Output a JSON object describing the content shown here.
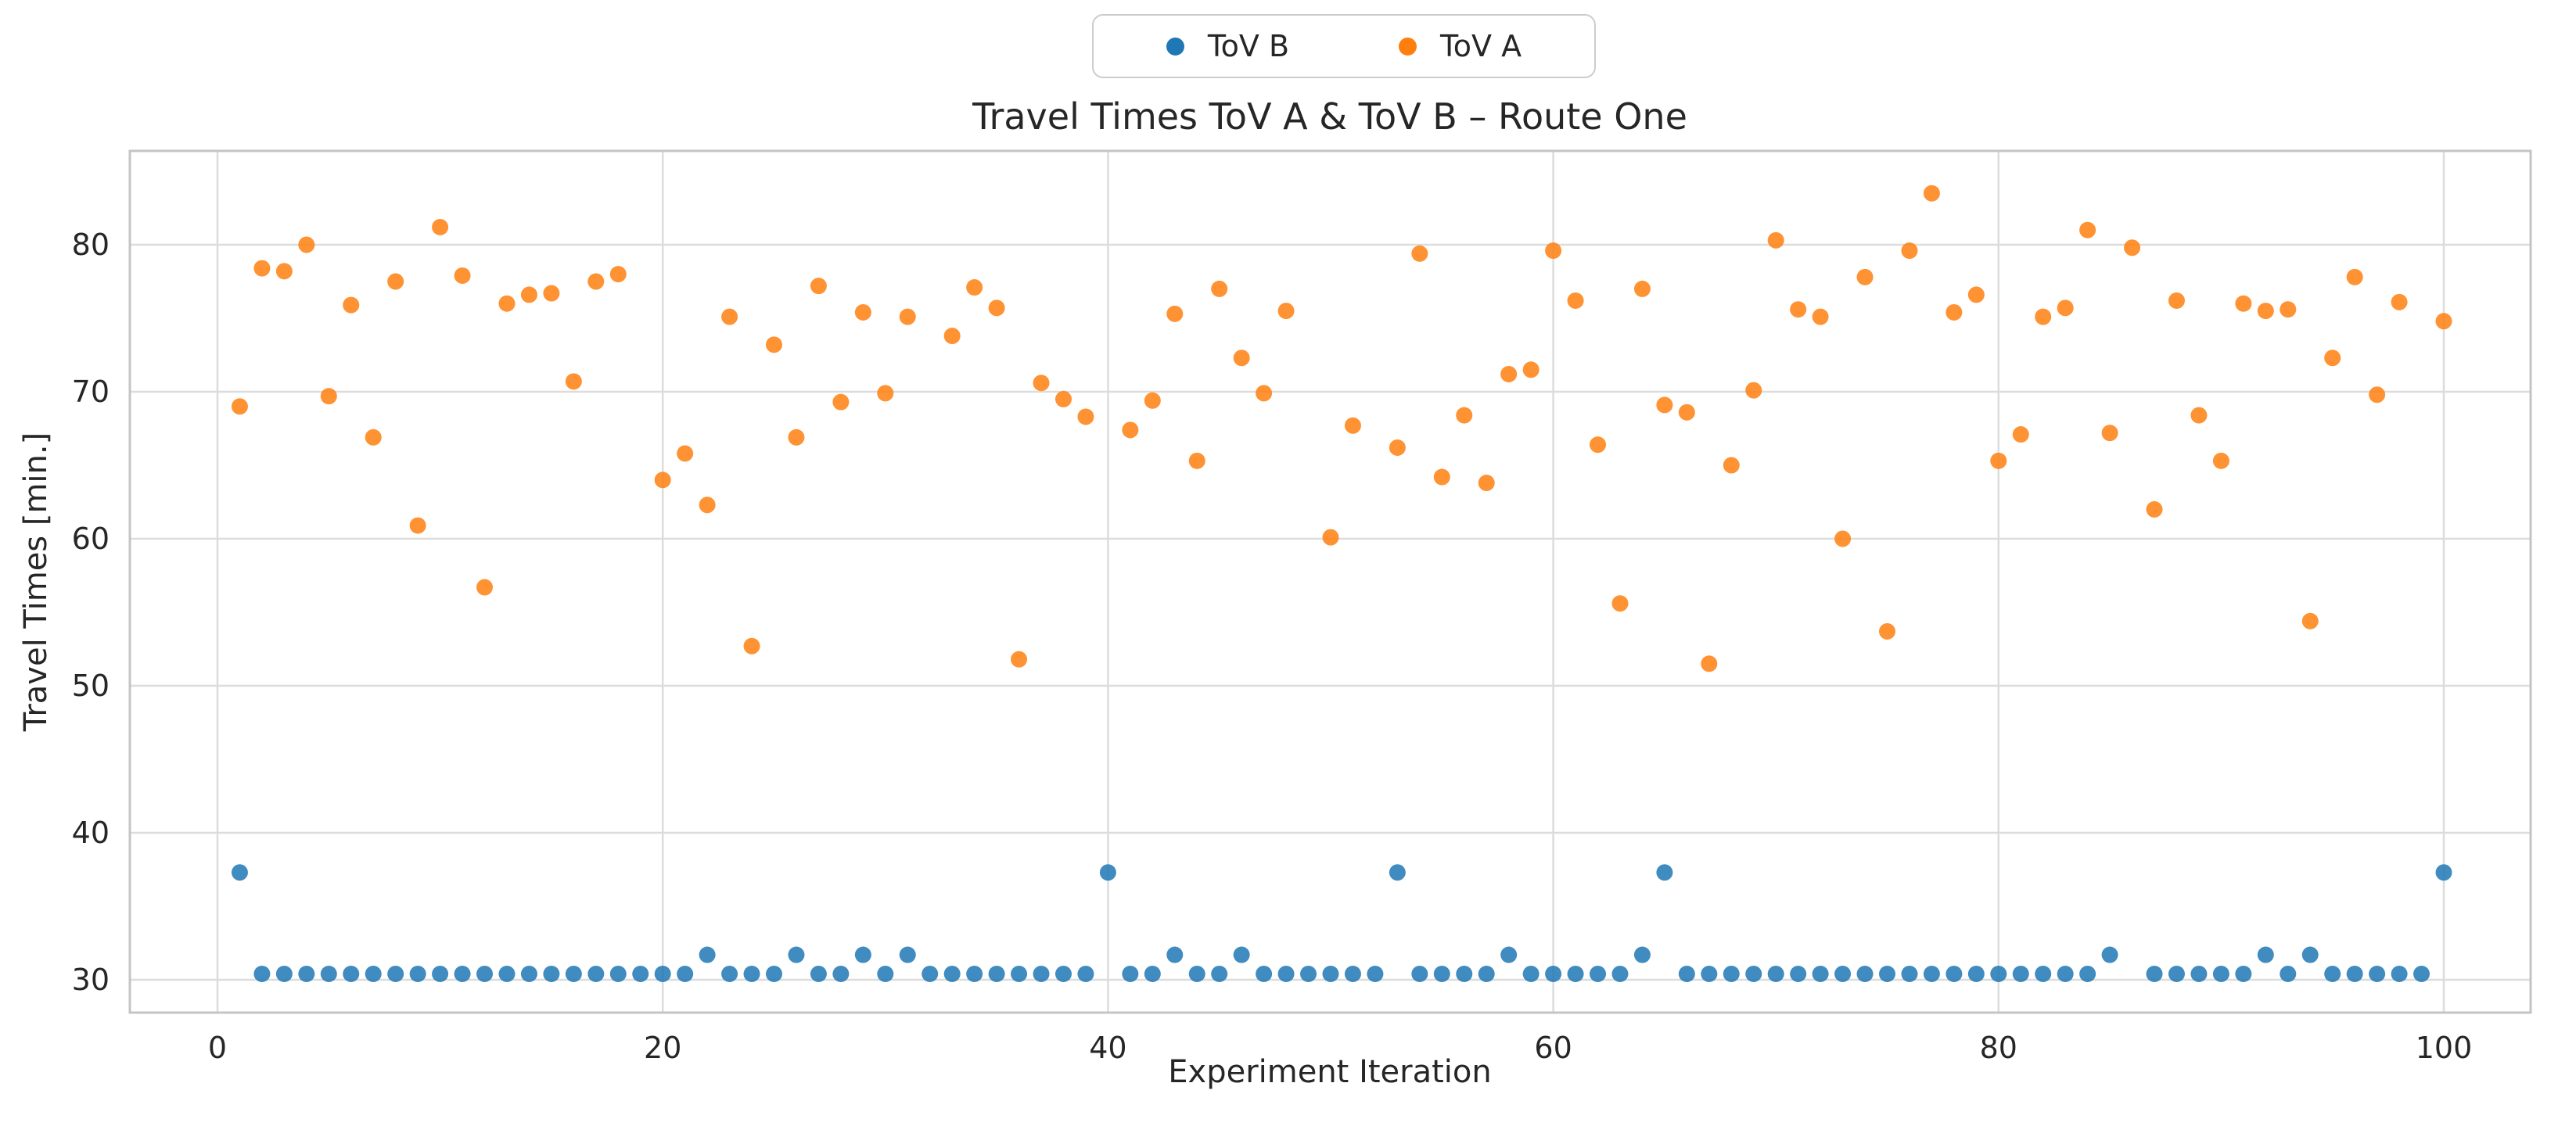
{
  "title": "Travel Times ToV A & ToV B – Route One",
  "axes": {
    "xlabel": "Experiment Iteration",
    "ylabel": "Travel Times [min.]"
  },
  "legend": {
    "entries": [
      {
        "label": "ToV B",
        "color": "#1f77b4"
      },
      {
        "label": "ToV A",
        "color": "#ff7f0e"
      }
    ]
  },
  "colors": {
    "blue": "#1f77b4",
    "orange": "#ff7f0e",
    "grid": "#dcdcdc",
    "spine": "#c4c4c4",
    "text": "#262626"
  },
  "chart_data": {
    "type": "scatter",
    "title": "Travel Times ToV A & ToV B – Route One",
    "xlabel": "Experiment Iteration",
    "ylabel": "Travel Times [min.]",
    "xlim": [
      -3.9,
      103.9
    ],
    "ylim": [
      27.8,
      86.4
    ],
    "xticks": [
      0,
      20,
      40,
      60,
      80,
      100
    ],
    "yticks": [
      30,
      40,
      50,
      60,
      70,
      80
    ],
    "grid": true,
    "legend_position": "upper center outside",
    "marker_opacity": 0.85,
    "series": [
      {
        "name": "ToV B",
        "color": "#1f77b4",
        "points": [
          [
            1,
            37.3
          ],
          [
            2,
            30.4
          ],
          [
            3,
            30.4
          ],
          [
            4,
            30.4
          ],
          [
            5,
            30.4
          ],
          [
            6,
            30.4
          ],
          [
            7,
            30.4
          ],
          [
            8,
            30.4
          ],
          [
            9,
            30.4
          ],
          [
            10,
            30.4
          ],
          [
            11,
            30.4
          ],
          [
            12,
            30.4
          ],
          [
            13,
            30.4
          ],
          [
            14,
            30.4
          ],
          [
            15,
            30.4
          ],
          [
            16,
            30.4
          ],
          [
            17,
            30.4
          ],
          [
            18,
            30.4
          ],
          [
            19,
            30.4
          ],
          [
            20,
            30.4
          ],
          [
            21,
            30.4
          ],
          [
            22,
            31.7
          ],
          [
            23,
            30.4
          ],
          [
            24,
            30.4
          ],
          [
            25,
            30.4
          ],
          [
            26,
            31.7
          ],
          [
            27,
            30.4
          ],
          [
            28,
            30.4
          ],
          [
            29,
            31.7
          ],
          [
            30,
            30.4
          ],
          [
            31,
            31.7
          ],
          [
            32,
            30.4
          ],
          [
            33,
            30.4
          ],
          [
            34,
            30.4
          ],
          [
            35,
            30.4
          ],
          [
            36,
            30.4
          ],
          [
            37,
            30.4
          ],
          [
            38,
            30.4
          ],
          [
            39,
            30.4
          ],
          [
            40,
            37.3
          ],
          [
            41,
            30.4
          ],
          [
            42,
            30.4
          ],
          [
            43,
            31.7
          ],
          [
            44,
            30.4
          ],
          [
            45,
            30.4
          ],
          [
            46,
            31.7
          ],
          [
            47,
            30.4
          ],
          [
            48,
            30.4
          ],
          [
            49,
            30.4
          ],
          [
            50,
            30.4
          ],
          [
            51,
            30.4
          ],
          [
            52,
            30.4
          ],
          [
            53,
            37.3
          ],
          [
            54,
            30.4
          ],
          [
            55,
            30.4
          ],
          [
            56,
            30.4
          ],
          [
            57,
            30.4
          ],
          [
            58,
            31.7
          ],
          [
            59,
            30.4
          ],
          [
            60,
            30.4
          ],
          [
            61,
            30.4
          ],
          [
            62,
            30.4
          ],
          [
            63,
            30.4
          ],
          [
            64,
            31.7
          ],
          [
            65,
            37.3
          ],
          [
            66,
            30.4
          ],
          [
            67,
            30.4
          ],
          [
            68,
            30.4
          ],
          [
            69,
            30.4
          ],
          [
            70,
            30.4
          ],
          [
            71,
            30.4
          ],
          [
            72,
            30.4
          ],
          [
            73,
            30.4
          ],
          [
            74,
            30.4
          ],
          [
            75,
            30.4
          ],
          [
            76,
            30.4
          ],
          [
            77,
            30.4
          ],
          [
            78,
            30.4
          ],
          [
            79,
            30.4
          ],
          [
            80,
            30.4
          ],
          [
            81,
            30.4
          ],
          [
            82,
            30.4
          ],
          [
            83,
            30.4
          ],
          [
            84,
            30.4
          ],
          [
            85,
            31.7
          ],
          [
            87,
            30.4
          ],
          [
            88,
            30.4
          ],
          [
            89,
            30.4
          ],
          [
            90,
            30.4
          ],
          [
            91,
            30.4
          ],
          [
            92,
            31.7
          ],
          [
            93,
            30.4
          ],
          [
            94,
            31.7
          ],
          [
            95,
            30.4
          ],
          [
            96,
            30.4
          ],
          [
            97,
            30.4
          ],
          [
            98,
            30.4
          ],
          [
            99,
            30.4
          ],
          [
            100,
            37.3
          ]
        ]
      },
      {
        "name": "ToV A",
        "color": "#ff7f0e",
        "points": [
          [
            1,
            69.0
          ],
          [
            2,
            78.4
          ],
          [
            3,
            78.2
          ],
          [
            4,
            80.0
          ],
          [
            5,
            69.7
          ],
          [
            6,
            75.9
          ],
          [
            7,
            66.9
          ],
          [
            8,
            77.5
          ],
          [
            9,
            60.9
          ],
          [
            10,
            81.2
          ],
          [
            11,
            77.9
          ],
          [
            12,
            56.7
          ],
          [
            13,
            76.0
          ],
          [
            14,
            76.6
          ],
          [
            15,
            76.7
          ],
          [
            16,
            70.7
          ],
          [
            17,
            77.5
          ],
          [
            18,
            78.0
          ],
          [
            20,
            64.0
          ],
          [
            21,
            65.8
          ],
          [
            22,
            62.3
          ],
          [
            23,
            75.1
          ],
          [
            24,
            52.7
          ],
          [
            25,
            73.2
          ],
          [
            26,
            66.9
          ],
          [
            27,
            77.2
          ],
          [
            28,
            69.3
          ],
          [
            29,
            75.4
          ],
          [
            30,
            69.9
          ],
          [
            31,
            75.1
          ],
          [
            33,
            73.8
          ],
          [
            34,
            77.1
          ],
          [
            35,
            75.7
          ],
          [
            36,
            51.8
          ],
          [
            37,
            70.6
          ],
          [
            38,
            69.5
          ],
          [
            39,
            68.3
          ],
          [
            41,
            67.4
          ],
          [
            42,
            69.4
          ],
          [
            43,
            75.3
          ],
          [
            44,
            65.3
          ],
          [
            45,
            77.0
          ],
          [
            46,
            72.3
          ],
          [
            47,
            69.9
          ],
          [
            48,
            75.5
          ],
          [
            50,
            60.1
          ],
          [
            51,
            67.7
          ],
          [
            53,
            66.2
          ],
          [
            54,
            79.4
          ],
          [
            55,
            64.2
          ],
          [
            56,
            68.4
          ],
          [
            57,
            63.8
          ],
          [
            58,
            71.2
          ],
          [
            59,
            71.5
          ],
          [
            60,
            79.6
          ],
          [
            61,
            76.2
          ],
          [
            62,
            66.4
          ],
          [
            63,
            55.6
          ],
          [
            64,
            77.0
          ],
          [
            65,
            69.1
          ],
          [
            66,
            68.6
          ],
          [
            67,
            51.5
          ],
          [
            68,
            65.0
          ],
          [
            69,
            70.1
          ],
          [
            70,
            80.3
          ],
          [
            71,
            75.6
          ],
          [
            72,
            75.1
          ],
          [
            73,
            60.0
          ],
          [
            74,
            77.8
          ],
          [
            75,
            53.7
          ],
          [
            76,
            79.6
          ],
          [
            77,
            83.5
          ],
          [
            78,
            75.4
          ],
          [
            79,
            76.6
          ],
          [
            80,
            65.3
          ],
          [
            81,
            67.1
          ],
          [
            82,
            75.1
          ],
          [
            83,
            75.7
          ],
          [
            84,
            81.0
          ],
          [
            85,
            67.2
          ],
          [
            86,
            79.8
          ],
          [
            87,
            62.0
          ],
          [
            88,
            76.2
          ],
          [
            89,
            68.4
          ],
          [
            90,
            65.3
          ],
          [
            91,
            76.0
          ],
          [
            92,
            75.5
          ],
          [
            93,
            75.6
          ],
          [
            94,
            54.4
          ],
          [
            95,
            72.3
          ],
          [
            96,
            77.8
          ],
          [
            97,
            69.8
          ],
          [
            98,
            76.1
          ],
          [
            100,
            74.8
          ]
        ]
      }
    ]
  }
}
